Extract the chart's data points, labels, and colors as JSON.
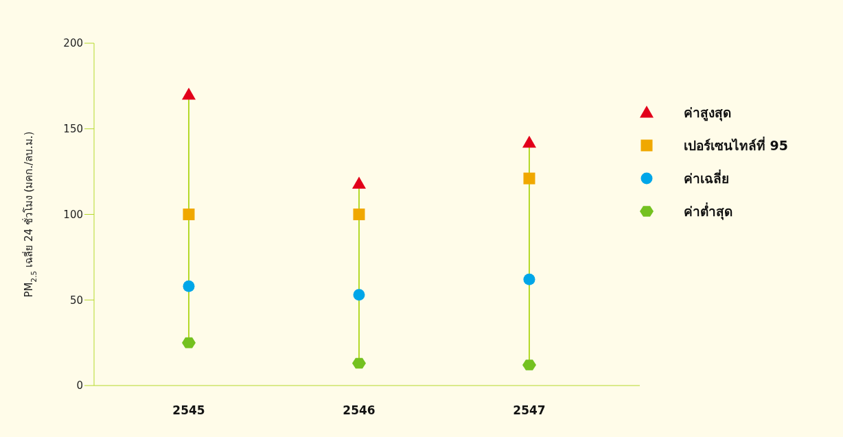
{
  "chart_data": {
    "type": "scatter",
    "ylabel": "PM$_{2.5}$ เฉลี่ย 24 ชั่วโมง (มคก./ลบ.ม.)",
    "categories": [
      "2545",
      "2546",
      "2547"
    ],
    "ylim": [
      0,
      200
    ],
    "yticks": [
      0,
      50,
      100,
      150,
      200
    ],
    "grid": false,
    "legend": "right",
    "series": [
      {
        "name": "ค่าสูงสุด",
        "color": "#e2001a",
        "marker": "triangle",
        "values": [
          170,
          118,
          142
        ]
      },
      {
        "name": "เปอร์เซนไทล์ที่ 95",
        "color": "#f0a800",
        "marker": "square",
        "values": [
          100,
          100,
          121
        ]
      },
      {
        "name": "ค่าเฉลี่ย",
        "color": "#00a6e8",
        "marker": "circle",
        "values": [
          58,
          53,
          62
        ]
      },
      {
        "name": "ค่าต่ำสุด",
        "color": "#74c120",
        "values": [
          25,
          13,
          12
        ]
      }
    ]
  }
}
